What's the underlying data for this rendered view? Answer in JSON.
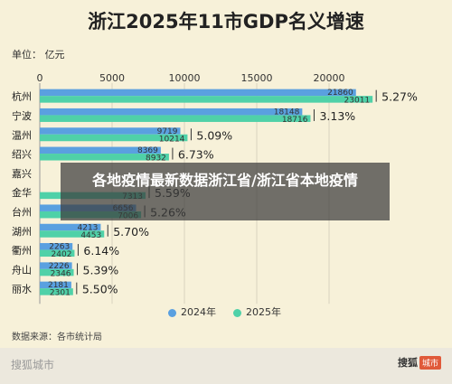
{
  "header": {
    "title": "浙江2025年11市GDP名义增速",
    "unit_label": "单位：  亿元"
  },
  "banner": {
    "text": "各地疫情最新数据浙江省/浙江省本地疫情"
  },
  "source_label": "数据来源：各市统计局",
  "footer": {
    "left_brand": "搜狐城市",
    "right_brand": "搜狐",
    "right_badge": "城市"
  },
  "colors": {
    "series_2024": "#5aa0e0",
    "series_2025": "#4fd1a8",
    "background": "#f7f1d9"
  },
  "chart_data": {
    "type": "bar",
    "orientation": "horizontal",
    "title": "浙江2025年11市GDP名义增速",
    "unit": "单位：  亿元",
    "xlim": [
      0,
      25000
    ],
    "xticks": [
      0,
      5000,
      10000,
      15000,
      20000
    ],
    "categories": [
      "杭州",
      "宁波",
      "温州",
      "绍兴",
      "嘉兴",
      "金华",
      "台州",
      "湖州",
      "衢州",
      "舟山",
      "丽水"
    ],
    "series": [
      {
        "name": "2024年",
        "values": [
          21860,
          18148,
          9719,
          8369,
          null,
          null,
          6656,
          4213,
          2263,
          2226,
          2181
        ]
      },
      {
        "name": "2025年",
        "values": [
          23011,
          18716,
          10214,
          8932,
          null,
          7313,
          7006,
          4453,
          2402,
          2346,
          2301
        ]
      }
    ],
    "growth_labels": [
      "5.27%",
      "3.13%",
      "5.09%",
      "6.73%",
      "",
      "5.59%",
      "5.26%",
      "5.70%",
      "6.14%",
      "5.39%",
      "5.50%"
    ],
    "legend_position": "bottom"
  }
}
